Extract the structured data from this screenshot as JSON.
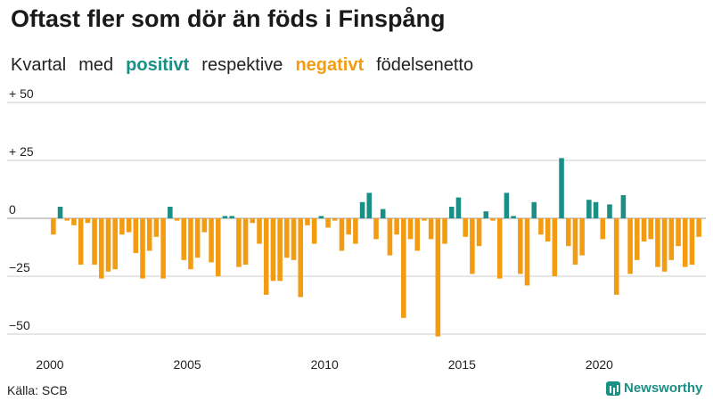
{
  "title": "Oftast fler som dör än föds i Finspång",
  "subtitle": {
    "part1": "Kvartal",
    "part2": "med",
    "positive_word": "positivt",
    "part3": "respektive",
    "negative_word": "negativt",
    "part4": "födelsenetto"
  },
  "source": "Källa: SCB",
  "brand": "Newsworthy",
  "colors": {
    "positive": "#1a8f85",
    "negative": "#f39c12",
    "grid": "#cccccc",
    "text": "#222222"
  },
  "chart_data": {
    "type": "bar",
    "title": "Oftast fler som dör än föds i Finspång",
    "xlabel": "",
    "ylabel": "",
    "ylim": [
      -50,
      50
    ],
    "grid": true,
    "y_ticks": [
      {
        "value": 50,
        "label": "+ 50"
      },
      {
        "value": 25,
        "label": "+ 25"
      },
      {
        "value": 0,
        "label": "0"
      },
      {
        "value": -25,
        "label": "−25"
      },
      {
        "value": -50,
        "label": "−50"
      }
    ],
    "x_ticks": [
      {
        "year": 2000,
        "label": "2000"
      },
      {
        "year": 2005,
        "label": "2005"
      },
      {
        "year": 2010,
        "label": "2010"
      },
      {
        "year": 2015,
        "label": "2015"
      },
      {
        "year": 2020,
        "label": "2020"
      }
    ],
    "start_year": 2000,
    "start_quarter": 1,
    "values": [
      -7,
      5,
      -1,
      -3,
      -20,
      -2,
      -20,
      -26,
      -23,
      -22,
      -7,
      -6,
      -15,
      -26,
      -14,
      -8,
      -26,
      5,
      -1,
      -18,
      -22,
      -17,
      -6,
      -19,
      -25,
      1,
      1,
      -21,
      -20,
      -2,
      -11,
      -33,
      -27,
      -27,
      -17,
      -18,
      -34,
      -3,
      -11,
      1,
      -4,
      -1,
      -14,
      -7,
      -11,
      7,
      11,
      -9,
      4,
      -16,
      -7,
      -43,
      -9,
      -14,
      -1,
      -9,
      -51,
      -11,
      5,
      9,
      -8,
      -24,
      -12,
      3,
      -1,
      -26,
      11,
      1,
      -24,
      -29,
      7,
      -7,
      -10,
      -25,
      26,
      -12,
      -20,
      -16,
      8,
      7,
      -9,
      6,
      -33,
      10,
      -24,
      -18,
      -10,
      -9,
      -21,
      -23,
      -18,
      -12,
      -21,
      -20,
      -8
    ]
  }
}
